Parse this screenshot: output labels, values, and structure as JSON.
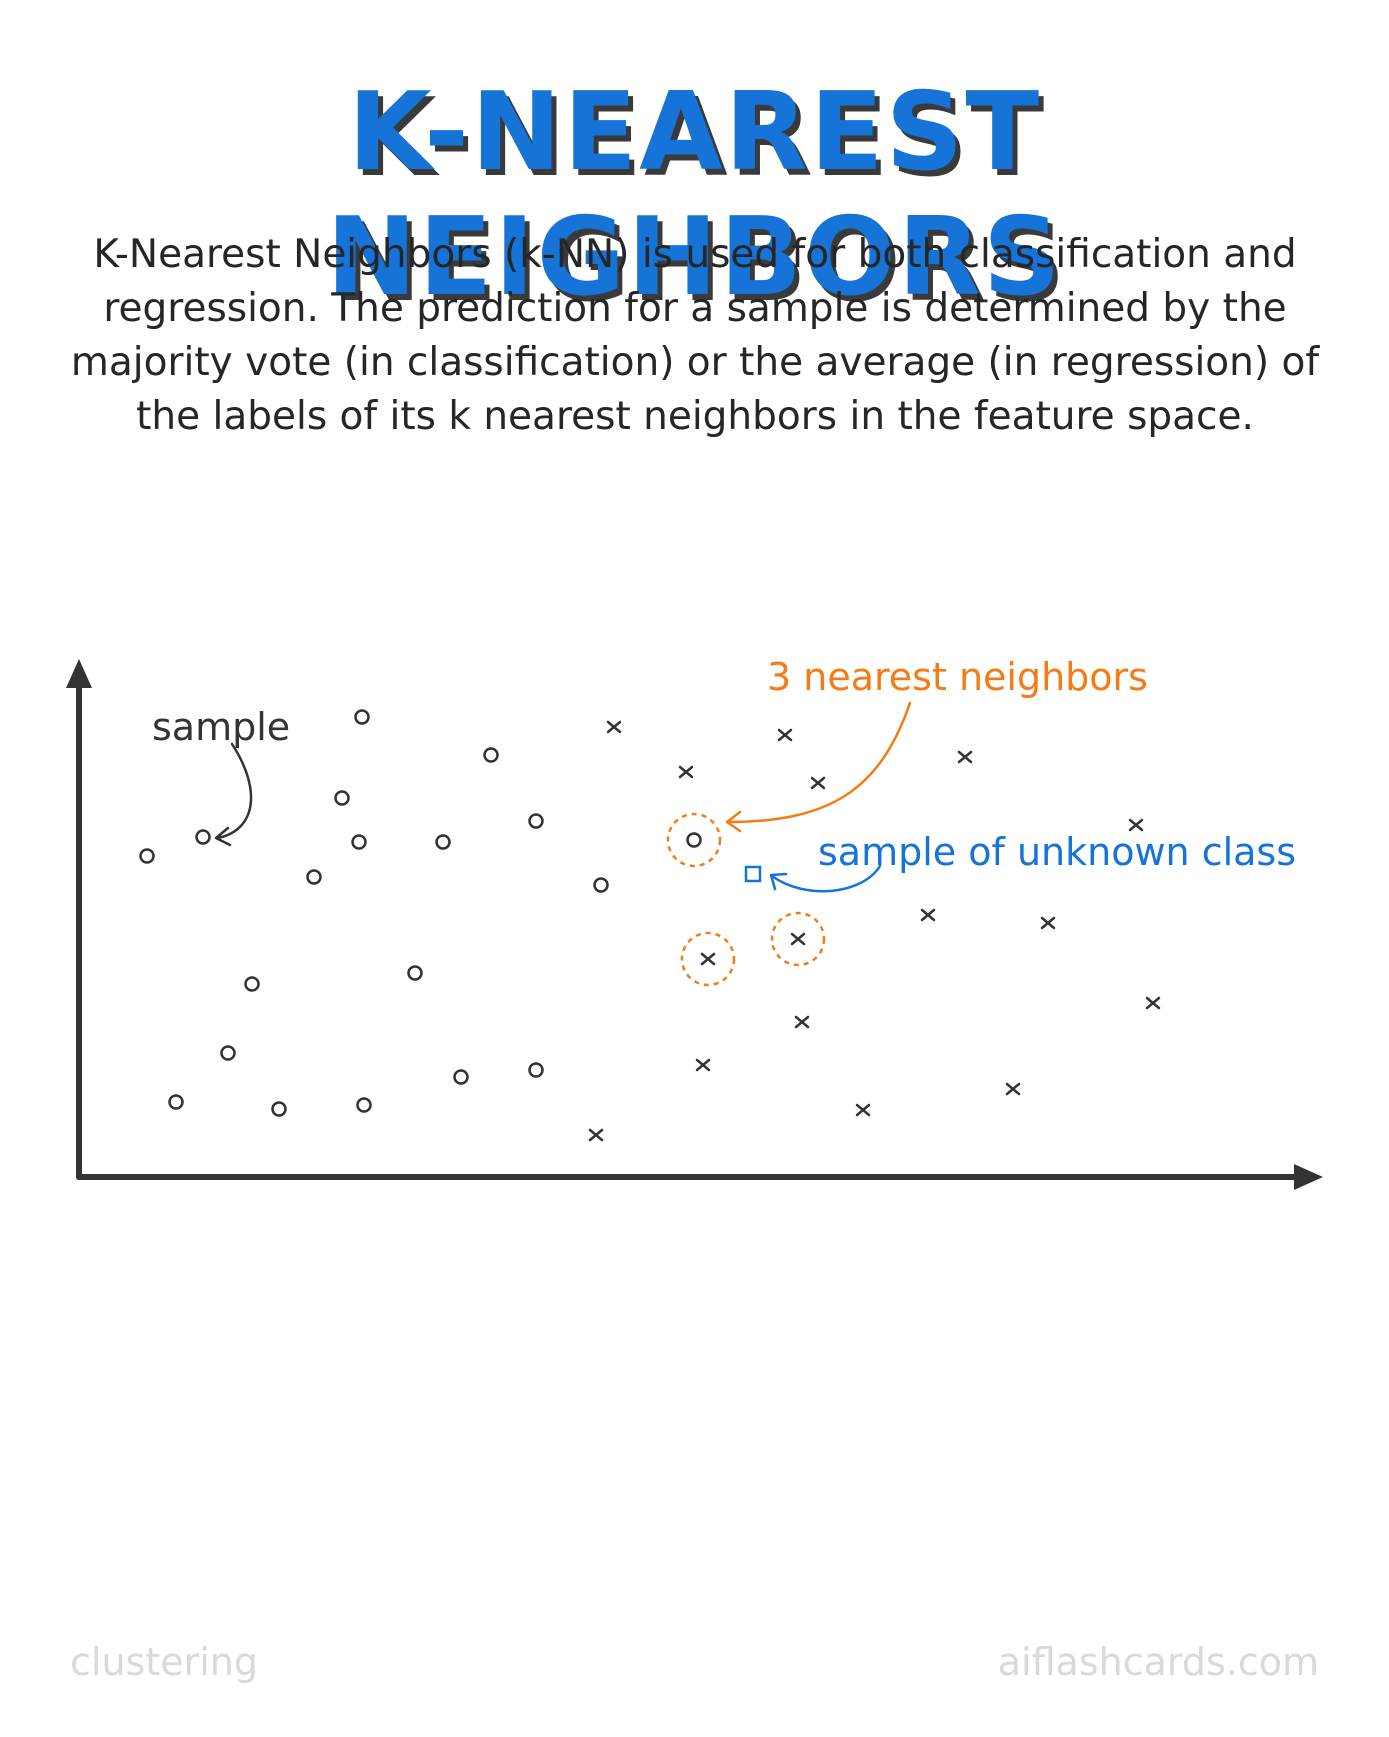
{
  "title": "K-NEAREST NEIGHBORS",
  "description": "K-Nearest Neighbors (k-NN) is used for both classification and regression. The prediction for a sample is determined by the majority vote (in classification) or the average (in regression) of the labels of its k nearest neighbors in the feature space.",
  "annotations": {
    "sample": "sample",
    "nearest": "3 nearest neighbors",
    "unknown": "sample of unknown class"
  },
  "footer": {
    "left": "clustering",
    "right": "aiflashcards.com"
  },
  "colors": {
    "title": "#1673d8",
    "nearest": "#f57c14",
    "unknown": "#1673d8",
    "ink": "#333333"
  }
}
